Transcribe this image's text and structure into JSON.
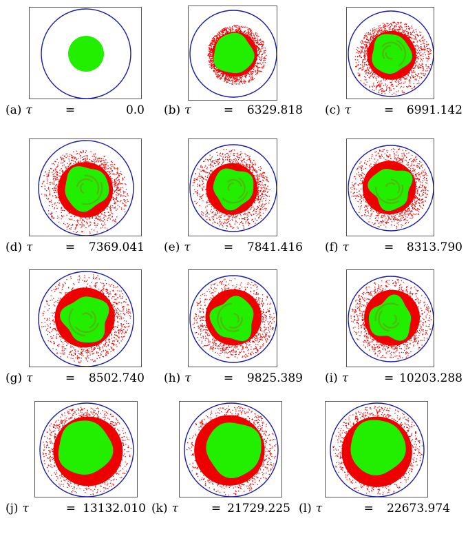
{
  "colors": {
    "inner": "#22ee00",
    "outer": "#ee0000",
    "boundary": "#1a1aa8",
    "frame": "#555555"
  },
  "panels": [
    {
      "label": "(a)",
      "symbol": "τ",
      "eq": "=",
      "value": "0.0"
    },
    {
      "label": "(b)",
      "symbol": "τ",
      "eq": "=",
      "value": "6329.818"
    },
    {
      "label": "(c)",
      "symbol": "τ",
      "eq": "=",
      "value": "6991.142"
    },
    {
      "label": "(d)",
      "symbol": "τ",
      "eq": "=",
      "value": "7369.041"
    },
    {
      "label": "(e)",
      "symbol": "τ",
      "eq": "=",
      "value": "7841.416"
    },
    {
      "label": "(f)",
      "symbol": "τ",
      "eq": "=",
      "value": "8313.790"
    },
    {
      "label": "(g)",
      "symbol": "τ",
      "eq": "=",
      "value": "8502.740"
    },
    {
      "label": "(h)",
      "symbol": "τ",
      "eq": "=",
      "value": "9825.389"
    },
    {
      "label": "(i)",
      "symbol": "τ",
      "eq": "=",
      "value": "10203.288"
    },
    {
      "label": "(j)",
      "symbol": "τ",
      "eq": "=",
      "value": "13132.010"
    },
    {
      "label": "(k)",
      "symbol": "τ",
      "eq": "=",
      "value": "21729.225"
    },
    {
      "label": "(l)",
      "symbol": "τ",
      "eq": "=",
      "value": "22673.974"
    }
  ]
}
